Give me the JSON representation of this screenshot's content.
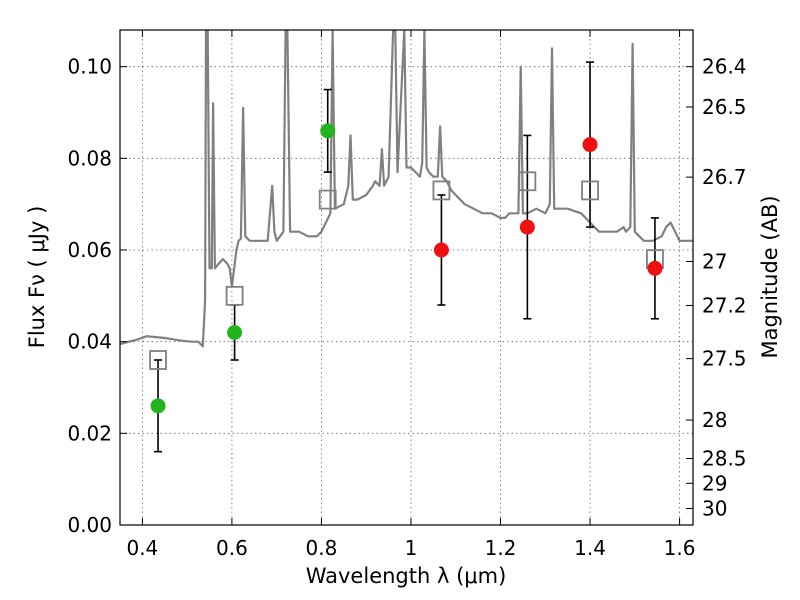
{
  "chart_data": {
    "type": "scatter",
    "title": "",
    "xlabel": "Wavelength  λ (μm)",
    "ylabel": "Flux  Fν  ( μJy )",
    "ylabel_right": "Magnitude (AB)",
    "xlim": [
      0.35,
      1.63
    ],
    "ylim": [
      0.0,
      0.108
    ],
    "x_ticks": [
      0.4,
      0.6,
      0.8,
      1.0,
      1.2,
      1.4,
      1.6
    ],
    "x_tick_labels": [
      "0.4",
      "0.6",
      "0.8",
      "1",
      "1.2",
      "1.4",
      "1.6"
    ],
    "y_ticks": [
      0.0,
      0.02,
      0.04,
      0.06,
      0.08,
      0.1
    ],
    "y_tick_labels": [
      "0.00",
      "0.02",
      "0.04",
      "0.06",
      "0.08",
      "0.10"
    ],
    "right_ticks": [
      {
        "label": "26.4",
        "flux": 0.1
      },
      {
        "label": "26.5",
        "flux": 0.0912
      },
      {
        "label": "26.7",
        "flux": 0.0759
      },
      {
        "label": "27",
        "flux": 0.0575
      },
      {
        "label": "27.2",
        "flux": 0.0479
      },
      {
        "label": "27.5",
        "flux": 0.0363
      },
      {
        "label": "28",
        "flux": 0.0229
      },
      {
        "label": "28.5",
        "flux": 0.0145
      },
      {
        "label": "29",
        "flux": 0.0091
      },
      {
        "label": "30",
        "flux": 0.0036
      }
    ],
    "grid": true,
    "colors": {
      "model": "#808080",
      "green": "#22b41e",
      "red": "#ee1111",
      "box": "#0000dd",
      "errorbar": "#000000"
    },
    "series": [
      {
        "kind": "line",
        "color": "gray",
        "points": [
          [
            0.35,
            0.0395
          ],
          [
            0.37,
            0.04
          ],
          [
            0.39,
            0.0405
          ],
          [
            0.41,
            0.0412
          ],
          [
            0.43,
            0.041
          ],
          [
            0.45,
            0.0408
          ],
          [
            0.47,
            0.0405
          ],
          [
            0.49,
            0.0402
          ],
          [
            0.51,
            0.04
          ],
          [
            0.525,
            0.04
          ],
          [
            0.535,
            0.039
          ],
          [
            0.54,
            0.049
          ],
          [
            0.542,
            0.108
          ],
          [
            0.546,
            0.108
          ],
          [
            0.55,
            0.056
          ],
          [
            0.555,
            0.056
          ],
          [
            0.558,
            0.092
          ],
          [
            0.562,
            0.056
          ],
          [
            0.57,
            0.057
          ],
          [
            0.58,
            0.058
          ],
          [
            0.59,
            0.057
          ],
          [
            0.595,
            0.056
          ],
          [
            0.6,
            0.052
          ],
          [
            0.605,
            0.056
          ],
          [
            0.61,
            0.06
          ],
          [
            0.615,
            0.062
          ],
          [
            0.62,
            0.0625
          ],
          [
            0.625,
            0.091
          ],
          [
            0.63,
            0.063
          ],
          [
            0.64,
            0.062
          ],
          [
            0.66,
            0.062
          ],
          [
            0.68,
            0.062
          ],
          [
            0.69,
            0.074
          ],
          [
            0.695,
            0.064
          ],
          [
            0.7,
            0.062
          ],
          [
            0.715,
            0.064
          ],
          [
            0.72,
            0.108
          ],
          [
            0.724,
            0.108
          ],
          [
            0.73,
            0.064
          ],
          [
            0.75,
            0.064
          ],
          [
            0.77,
            0.063
          ],
          [
            0.79,
            0.063
          ],
          [
            0.8,
            0.064
          ],
          [
            0.815,
            0.067
          ],
          [
            0.82,
            0.068
          ],
          [
            0.825,
            0.108
          ],
          [
            0.83,
            0.069
          ],
          [
            0.85,
            0.07
          ],
          [
            0.86,
            0.074
          ],
          [
            0.865,
            0.085
          ],
          [
            0.87,
            0.071
          ],
          [
            0.88,
            0.071
          ],
          [
            0.9,
            0.072
          ],
          [
            0.915,
            0.074
          ],
          [
            0.92,
            0.075
          ],
          [
            0.93,
            0.074
          ],
          [
            0.935,
            0.082
          ],
          [
            0.94,
            0.074
          ],
          [
            0.95,
            0.076
          ],
          [
            0.96,
            0.108
          ],
          [
            0.965,
            0.108
          ],
          [
            0.97,
            0.077
          ],
          [
            0.985,
            0.108
          ],
          [
            0.99,
            0.078
          ],
          [
            1.0,
            0.078
          ],
          [
            1.01,
            0.077
          ],
          [
            1.02,
            0.076
          ],
          [
            1.025,
            0.079
          ],
          [
            1.03,
            0.108
          ],
          [
            1.035,
            0.078
          ],
          [
            1.04,
            0.077
          ],
          [
            1.05,
            0.076
          ],
          [
            1.06,
            0.076
          ],
          [
            1.065,
            0.087
          ],
          [
            1.07,
            0.076
          ],
          [
            1.08,
            0.075
          ],
          [
            1.09,
            0.073
          ],
          [
            1.1,
            0.072
          ],
          [
            1.12,
            0.07
          ],
          [
            1.14,
            0.069
          ],
          [
            1.16,
            0.068
          ],
          [
            1.18,
            0.068
          ],
          [
            1.2,
            0.067
          ],
          [
            1.21,
            0.067
          ],
          [
            1.22,
            0.068
          ],
          [
            1.24,
            0.068
          ],
          [
            1.245,
            0.1
          ],
          [
            1.25,
            0.068
          ],
          [
            1.26,
            0.068
          ],
          [
            1.28,
            0.069
          ],
          [
            1.3,
            0.068
          ],
          [
            1.31,
            0.07
          ],
          [
            1.315,
            0.104
          ],
          [
            1.32,
            0.069
          ],
          [
            1.35,
            0.069
          ],
          [
            1.38,
            0.068
          ],
          [
            1.4,
            0.066
          ],
          [
            1.42,
            0.064
          ],
          [
            1.44,
            0.064
          ],
          [
            1.46,
            0.064
          ],
          [
            1.475,
            0.065
          ],
          [
            1.48,
            0.064
          ],
          [
            1.49,
            0.065
          ],
          [
            1.495,
            0.105
          ],
          [
            1.5,
            0.064
          ],
          [
            1.52,
            0.062
          ],
          [
            1.54,
            0.062
          ],
          [
            1.56,
            0.063
          ],
          [
            1.57,
            0.065
          ],
          [
            1.58,
            0.066
          ],
          [
            1.59,
            0.064
          ],
          [
            1.6,
            0.062
          ],
          [
            1.63,
            0.062
          ]
        ]
      },
      {
        "kind": "points",
        "color": "green",
        "points": [
          {
            "x": 0.435,
            "y": 0.026,
            "err": 0.01
          },
          {
            "x": 0.606,
            "y": 0.042,
            "err": 0.006
          },
          {
            "x": 0.814,
            "y": 0.086,
            "err": 0.009
          }
        ]
      },
      {
        "kind": "points",
        "color": "red",
        "points": [
          {
            "x": 1.068,
            "y": 0.06,
            "err": 0.012
          },
          {
            "x": 1.26,
            "y": 0.065,
            "err": 0.02
          },
          {
            "x": 1.4,
            "y": 0.083,
            "err": 0.018
          },
          {
            "x": 1.545,
            "y": 0.056,
            "err": 0.011
          }
        ]
      },
      {
        "kind": "boxes",
        "color": "blue",
        "points": [
          {
            "x": 0.435,
            "y": 0.036
          },
          {
            "x": 0.606,
            "y": 0.05
          },
          {
            "x": 0.814,
            "y": 0.071
          },
          {
            "x": 1.068,
            "y": 0.073
          },
          {
            "x": 1.26,
            "y": 0.075
          },
          {
            "x": 1.4,
            "y": 0.073
          },
          {
            "x": 1.545,
            "y": 0.058
          }
        ]
      }
    ]
  }
}
